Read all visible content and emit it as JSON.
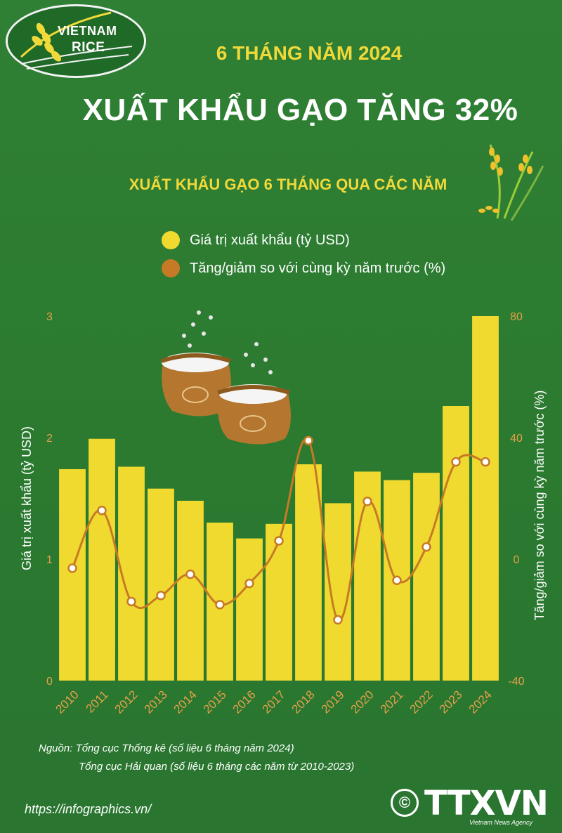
{
  "logo": {
    "line1": "VIETNAM",
    "line2": "RICE"
  },
  "header": {
    "period": "6 THÁNG NĂM 2024",
    "headline": "XUẤT KHẨU GẠO TĂNG 32%",
    "subtitle": "XUẤT KHẨU GẠO 6 THÁNG QUA CÁC NĂM"
  },
  "colors": {
    "background": "#2e7d32",
    "bar": "#f0da30",
    "line": "#c67a25",
    "point_fill": "#ffffff",
    "accent_yellow": "#f2d93a",
    "tick_orange": "#e5a04a"
  },
  "icons": [
    "rice-logo-icon",
    "rice-plant-icon",
    "rice-sack-icon",
    "copyright-icon"
  ],
  "legend": {
    "bars": "Giá trị xuất khẩu (tỷ USD)",
    "line": "Tăng/giảm so với cùng kỳ năm trước (%)"
  },
  "chart_data": {
    "type": "bar",
    "categories": [
      "2010",
      "2011",
      "2012",
      "2013",
      "2014",
      "2015",
      "2016",
      "2017",
      "2018",
      "2019",
      "2020",
      "2021",
      "2022",
      "2023",
      "2024"
    ],
    "series": [
      {
        "name": "Giá trị xuất khẩu (tỷ USD)",
        "type": "bar",
        "axis": "left",
        "values": [
          1.74,
          1.99,
          1.76,
          1.58,
          1.48,
          1.3,
          1.17,
          1.29,
          1.78,
          1.46,
          1.72,
          1.65,
          1.71,
          2.26,
          3.0
        ]
      },
      {
        "name": "Tăng/giảm so với cùng kỳ năm trước (%)",
        "type": "line",
        "axis": "right",
        "values": [
          -3,
          16,
          -14,
          -12,
          -5,
          -15,
          -8,
          6,
          39,
          -20,
          19,
          -7,
          4,
          32,
          32
        ]
      }
    ],
    "ylabel": "Giá trị xuất khẩu (tỷ USD)",
    "y2label": "Tăng/giảm so với cùng kỳ năm trước (%)",
    "ylim": [
      0,
      3
    ],
    "y2lim": [
      -40,
      80
    ],
    "yticks": [
      "0",
      "1",
      "2",
      "3"
    ],
    "y2ticks": [
      "-40",
      "0",
      "40",
      "80"
    ],
    "grid": false,
    "legend_position": "top"
  },
  "footer": {
    "source_line1": "Nguồn: Tổng cục Thống kê (số liệu 6 tháng năm 2024)",
    "source_line2": "Tổng cục Hải quan (số liệu 6 tháng các năm từ 2010-2023)",
    "url": "https://infographics.vn/",
    "copyright": "©",
    "brand": "TTXVN",
    "brand_sub": "Vietnam News Agency"
  }
}
